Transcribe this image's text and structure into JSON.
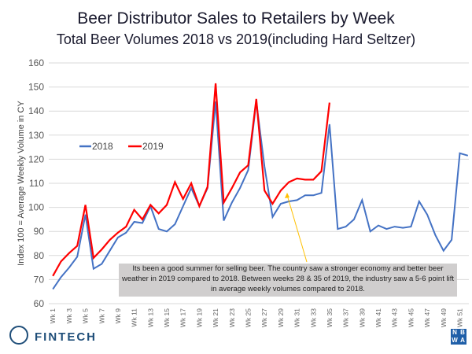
{
  "chart_data": {
    "type": "line",
    "title": "Beer Distributor Sales to Retailers by Week",
    "subtitle": "Total Beer Volumes 2018 vs 2019(including Hard Seltzer)",
    "xlabel": "",
    "ylabel": "Index 100 = Average Weekly Volume in CY",
    "ylim": [
      60,
      160
    ],
    "yticks": [
      60,
      70,
      80,
      90,
      100,
      110,
      120,
      130,
      140,
      150,
      160
    ],
    "grid": true,
    "legend_position": "top-left",
    "x": [
      "Wk 1",
      "Wk 2",
      "Wk 3",
      "Wk 4",
      "Wk 5",
      "Wk 6",
      "Wk 7",
      "Wk 8",
      "Wk 9",
      "Wk 10",
      "Wk 11",
      "Wk 12",
      "Wk 13",
      "Wk 14",
      "Wk 15",
      "Wk 16",
      "Wk 17",
      "Wk 18",
      "Wk 19",
      "Wk 20",
      "Wk 21",
      "Wk 22",
      "Wk 23",
      "Wk 24",
      "Wk 25",
      "Wk 26",
      "Wk 27",
      "Wk 28",
      "Wk 29",
      "Wk 30",
      "Wk 31",
      "Wk 32",
      "Wk 33",
      "Wk 34",
      "Wk 35",
      "Wk 36",
      "Wk 37",
      "Wk 38",
      "Wk 39",
      "Wk 40",
      "Wk 41",
      "Wk 42",
      "Wk 43",
      "Wk 44",
      "Wk 45",
      "Wk 46",
      "Wk 47",
      "Wk 48",
      "Wk 49",
      "Wk 50",
      "Wk 51",
      "Wk 52"
    ],
    "xtick_labels": [
      "Wk 1",
      "Wk 3",
      "Wk 5",
      "Wk 7",
      "Wk 9",
      "Wk 11",
      "Wk 13",
      "Wk 15",
      "Wk 17",
      "Wk 19",
      "Wk 21",
      "Wk 23",
      "Wk 25",
      "Wk 27",
      "Wk 29",
      "Wk 31",
      "Wk 33",
      "Wk 35",
      "Wk 37",
      "Wk 39",
      "Wk 41",
      "Wk 43",
      "Wk 45",
      "Wk 47",
      "Wk 49",
      "Wk 51"
    ],
    "series": [
      {
        "name": "2018",
        "color": "#4472c4",
        "values": [
          66,
          71,
          75,
          79.5,
          97,
          74.5,
          76.5,
          82,
          87.5,
          89.5,
          94,
          93.5,
          100.5,
          91,
          90,
          93,
          100.5,
          108,
          100.5,
          108,
          144,
          94.5,
          102,
          108,
          115.5,
          144,
          117,
          96,
          101.5,
          102.5,
          103,
          105,
          105,
          106,
          134.5,
          91,
          92,
          95,
          103,
          90,
          92.5,
          91,
          92,
          91.5,
          92,
          102.5,
          97,
          88.5,
          82,
          86.5,
          122.5,
          121.5
        ]
      },
      {
        "name": "2019",
        "color": "#ff0000",
        "values": [
          71.5,
          77.5,
          81,
          84,
          101,
          79,
          82.5,
          86.5,
          89.5,
          92,
          99,
          95,
          101,
          97.5,
          101,
          110.5,
          103.5,
          110,
          100.5,
          108.5,
          151.5,
          102,
          108,
          114.5,
          117.5,
          145,
          107,
          101.5,
          107,
          110.5,
          112,
          111.5,
          111.5,
          115,
          143.5
        ]
      }
    ],
    "annotation": {
      "text": "Its been a good summer for selling beer. The country  saw a stronger economy and better  beer weather in 2019 compared to 2018. Between weeks 28 & 35 of 2019, the industry saw a 5-6 point lift in average weekly volumes compared to 2018.",
      "arrow_color": "#ffc000",
      "points_to": "Wk 31"
    }
  },
  "logos": {
    "left": "FINTECH",
    "right": [
      "N",
      "B",
      "W",
      "A"
    ]
  }
}
